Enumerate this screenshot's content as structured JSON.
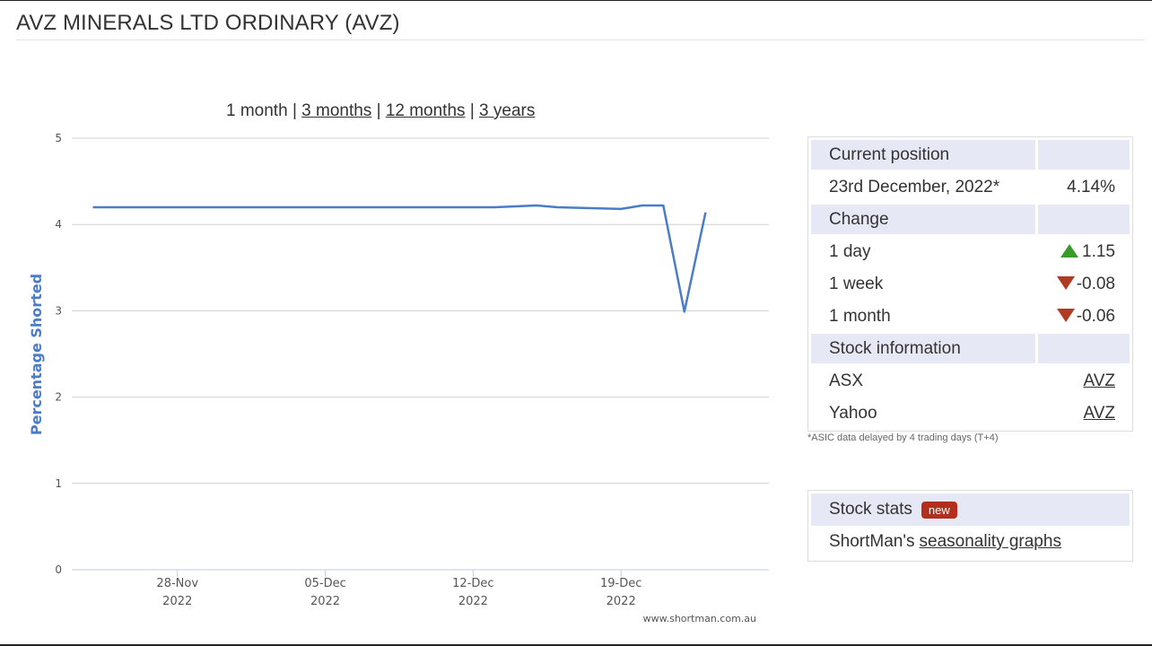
{
  "page": {
    "title": "AVZ MINERALS LTD ORDINARY (AVZ)"
  },
  "range_nav": {
    "current": "1 month",
    "links": [
      "3 months",
      "12 months",
      "3 years"
    ],
    "separator": "|"
  },
  "chart_data": {
    "type": "line",
    "ylabel": "Percentage Shorted",
    "ylim": [
      0,
      5
    ],
    "yticks": [
      "0",
      "1",
      "2",
      "3",
      "4",
      "5"
    ],
    "xticks": [
      {
        "date": "28-Nov",
        "year": "2022"
      },
      {
        "date": "05-Dec",
        "year": "2022"
      },
      {
        "date": "12-Dec",
        "year": "2022"
      },
      {
        "date": "19-Dec",
        "year": "2022"
      }
    ],
    "grid": true,
    "line_color": "#4a7cc9",
    "credit": "www.shortman.com.au",
    "series": [
      {
        "x": [
          "2022-11-24",
          "2022-11-25",
          "2022-11-28",
          "2022-11-29",
          "2022-11-30",
          "2022-12-01",
          "2022-12-02",
          "2022-12-05",
          "2022-12-06",
          "2022-12-07",
          "2022-12-08",
          "2022-12-09",
          "2022-12-12",
          "2022-12-13",
          "2022-12-14",
          "2022-12-15",
          "2022-12-16",
          "2022-12-19",
          "2022-12-20",
          "2022-12-21",
          "2022-12-22",
          "2022-12-23"
        ],
        "y": [
          4.2,
          4.2,
          4.2,
          4.2,
          4.2,
          4.2,
          4.2,
          4.2,
          4.2,
          4.2,
          4.2,
          4.2,
          4.2,
          4.2,
          4.21,
          4.22,
          4.2,
          4.18,
          4.22,
          4.22,
          2.99,
          4.14
        ]
      }
    ]
  },
  "info": {
    "current_position_label": "Current position",
    "date_label": "23rd December, 2022*",
    "date_value": "4.14%",
    "change_label": "Change",
    "changes": [
      {
        "label": "1 day",
        "value": "1.15",
        "direction": "up"
      },
      {
        "label": "1 week",
        "value": "-0.08",
        "direction": "down"
      },
      {
        "label": "1 month",
        "value": "-0.06",
        "direction": "down"
      }
    ],
    "stock_info_label": "Stock information",
    "links": [
      {
        "label": "ASX",
        "value": "AVZ"
      },
      {
        "label": "Yahoo",
        "value": "AVZ"
      }
    ],
    "footnote": "*ASIC data delayed by 4 trading days (T+4)"
  },
  "stats": {
    "title": "Stock stats",
    "badge": "new",
    "prefix": "ShortMan's",
    "link": "seasonality graphs"
  }
}
